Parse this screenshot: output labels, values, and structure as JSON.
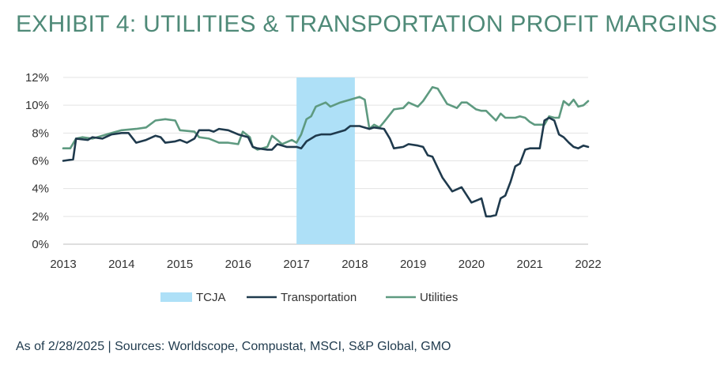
{
  "title": "EXHIBIT 4: UTILITIES & TRANSPORTATION PROFIT MARGINS",
  "source": "As of 2/28/2025 | Sources: Worldscope, Compustat, MSCI, S&P Global, GMO",
  "colors": {
    "title": "#4f8a78",
    "tcja": "#aee0f7",
    "transportation": "#1f3a4d",
    "utilities": "#5e9a80",
    "grid": "#e3e3e3"
  },
  "chart_data": {
    "type": "line",
    "title": "EXHIBIT 4: UTILITIES & TRANSPORTATION PROFIT MARGINS",
    "xlim": [
      2013,
      2022
    ],
    "ylim": [
      0,
      12
    ],
    "x_ticks": [
      2013,
      2014,
      2015,
      2016,
      2017,
      2018,
      2019,
      2020,
      2021,
      2022
    ],
    "x_tick_labels": [
      "2013",
      "2014",
      "2015",
      "2016",
      "2017",
      "2018",
      "2019",
      "2020",
      "2021",
      "2022"
    ],
    "y_ticks": [
      0,
      2,
      4,
      6,
      8,
      10,
      12
    ],
    "y_tick_labels": [
      "0%",
      "2%",
      "4%",
      "6%",
      "8%",
      "10%",
      "12%"
    ],
    "grid": "horizontal",
    "legend_position": "bottom",
    "shaded_regions": [
      {
        "name": "TCJA",
        "x_start": 2017.0,
        "x_end": 2018.0
      }
    ],
    "series": [
      {
        "name": "Transportation",
        "points": [
          [
            2013.0,
            6.0
          ],
          [
            2013.17,
            6.1
          ],
          [
            2013.22,
            7.6
          ],
          [
            2013.42,
            7.5
          ],
          [
            2013.5,
            7.7
          ],
          [
            2013.67,
            7.6
          ],
          [
            2013.83,
            7.9
          ],
          [
            2014.0,
            8.0
          ],
          [
            2014.12,
            8.0
          ],
          [
            2014.25,
            7.3
          ],
          [
            2014.42,
            7.5
          ],
          [
            2014.58,
            7.8
          ],
          [
            2014.67,
            7.7
          ],
          [
            2014.75,
            7.3
          ],
          [
            2014.92,
            7.4
          ],
          [
            2015.0,
            7.5
          ],
          [
            2015.12,
            7.3
          ],
          [
            2015.25,
            7.6
          ],
          [
            2015.33,
            8.2
          ],
          [
            2015.5,
            8.2
          ],
          [
            2015.58,
            8.1
          ],
          [
            2015.67,
            8.3
          ],
          [
            2015.83,
            8.2
          ],
          [
            2016.0,
            7.9
          ],
          [
            2016.08,
            7.8
          ],
          [
            2016.17,
            7.7
          ],
          [
            2016.25,
            7.0
          ],
          [
            2016.33,
            6.9
          ],
          [
            2016.5,
            6.8
          ],
          [
            2016.58,
            6.8
          ],
          [
            2016.67,
            7.2
          ],
          [
            2016.83,
            7.0
          ],
          [
            2017.0,
            7.0
          ],
          [
            2017.08,
            6.9
          ],
          [
            2017.17,
            7.4
          ],
          [
            2017.33,
            7.8
          ],
          [
            2017.42,
            7.9
          ],
          [
            2017.58,
            7.9
          ],
          [
            2017.67,
            8.0
          ],
          [
            2017.83,
            8.2
          ],
          [
            2017.92,
            8.5
          ],
          [
            2018.08,
            8.5
          ],
          [
            2018.25,
            8.3
          ],
          [
            2018.33,
            8.4
          ],
          [
            2018.5,
            8.3
          ],
          [
            2018.6,
            7.6
          ],
          [
            2018.67,
            6.9
          ],
          [
            2018.83,
            7.0
          ],
          [
            2018.92,
            7.2
          ],
          [
            2019.08,
            7.1
          ],
          [
            2019.17,
            7.0
          ],
          [
            2019.25,
            6.4
          ],
          [
            2019.33,
            6.3
          ],
          [
            2019.42,
            5.5
          ],
          [
            2019.5,
            4.8
          ],
          [
            2019.67,
            3.8
          ],
          [
            2019.83,
            4.1
          ],
          [
            2020.0,
            3.0
          ],
          [
            2020.12,
            3.2
          ],
          [
            2020.17,
            3.3
          ],
          [
            2020.25,
            2.0
          ],
          [
            2020.33,
            2.0
          ],
          [
            2020.42,
            2.1
          ],
          [
            2020.5,
            3.3
          ],
          [
            2020.58,
            3.5
          ],
          [
            2020.67,
            4.5
          ],
          [
            2020.75,
            5.6
          ],
          [
            2020.83,
            5.8
          ],
          [
            2020.92,
            6.8
          ],
          [
            2021.0,
            6.9
          ],
          [
            2021.17,
            6.9
          ],
          [
            2021.25,
            8.9
          ],
          [
            2021.33,
            9.1
          ],
          [
            2021.42,
            8.9
          ],
          [
            2021.5,
            7.9
          ],
          [
            2021.58,
            7.7
          ],
          [
            2021.67,
            7.3
          ],
          [
            2021.75,
            7.0
          ],
          [
            2021.83,
            6.9
          ],
          [
            2021.92,
            7.1
          ],
          [
            2022.0,
            7.0
          ]
        ]
      },
      {
        "name": "Utilities",
        "points": [
          [
            2013.0,
            6.9
          ],
          [
            2013.12,
            6.9
          ],
          [
            2013.22,
            7.6
          ],
          [
            2013.33,
            7.7
          ],
          [
            2013.5,
            7.6
          ],
          [
            2013.67,
            7.8
          ],
          [
            2013.83,
            8.0
          ],
          [
            2014.0,
            8.2
          ],
          [
            2014.25,
            8.3
          ],
          [
            2014.42,
            8.4
          ],
          [
            2014.58,
            8.9
          ],
          [
            2014.75,
            9.0
          ],
          [
            2014.92,
            8.9
          ],
          [
            2015.0,
            8.2
          ],
          [
            2015.25,
            8.1
          ],
          [
            2015.33,
            7.7
          ],
          [
            2015.5,
            7.6
          ],
          [
            2015.67,
            7.3
          ],
          [
            2015.83,
            7.3
          ],
          [
            2016.0,
            7.2
          ],
          [
            2016.08,
            8.1
          ],
          [
            2016.2,
            7.7
          ],
          [
            2016.25,
            7.0
          ],
          [
            2016.33,
            6.8
          ],
          [
            2016.5,
            7.0
          ],
          [
            2016.58,
            7.8
          ],
          [
            2016.67,
            7.5
          ],
          [
            2016.75,
            7.2
          ],
          [
            2016.92,
            7.5
          ],
          [
            2017.0,
            7.3
          ],
          [
            2017.08,
            7.9
          ],
          [
            2017.17,
            9.0
          ],
          [
            2017.25,
            9.2
          ],
          [
            2017.33,
            9.9
          ],
          [
            2017.5,
            10.2
          ],
          [
            2017.58,
            9.9
          ],
          [
            2017.75,
            10.2
          ],
          [
            2017.92,
            10.4
          ],
          [
            2018.08,
            10.6
          ],
          [
            2018.17,
            10.4
          ],
          [
            2018.25,
            8.3
          ],
          [
            2018.33,
            8.6
          ],
          [
            2018.42,
            8.4
          ],
          [
            2018.5,
            8.8
          ],
          [
            2018.67,
            9.7
          ],
          [
            2018.83,
            9.8
          ],
          [
            2018.92,
            10.2
          ],
          [
            2019.08,
            9.9
          ],
          [
            2019.17,
            10.3
          ],
          [
            2019.33,
            11.3
          ],
          [
            2019.42,
            11.2
          ],
          [
            2019.58,
            10.1
          ],
          [
            2019.75,
            9.8
          ],
          [
            2019.83,
            10.2
          ],
          [
            2019.92,
            10.2
          ],
          [
            2020.08,
            9.7
          ],
          [
            2020.17,
            9.6
          ],
          [
            2020.25,
            9.6
          ],
          [
            2020.42,
            8.9
          ],
          [
            2020.5,
            9.4
          ],
          [
            2020.58,
            9.1
          ],
          [
            2020.75,
            9.1
          ],
          [
            2020.83,
            9.2
          ],
          [
            2020.92,
            9.1
          ],
          [
            2021.0,
            8.8
          ],
          [
            2021.08,
            8.6
          ],
          [
            2021.25,
            8.6
          ],
          [
            2021.33,
            9.2
          ],
          [
            2021.42,
            9.1
          ],
          [
            2021.5,
            9.1
          ],
          [
            2021.58,
            10.3
          ],
          [
            2021.67,
            10.0
          ],
          [
            2021.75,
            10.4
          ],
          [
            2021.83,
            9.9
          ],
          [
            2021.92,
            10.0
          ],
          [
            2022.0,
            10.3
          ]
        ]
      }
    ]
  }
}
